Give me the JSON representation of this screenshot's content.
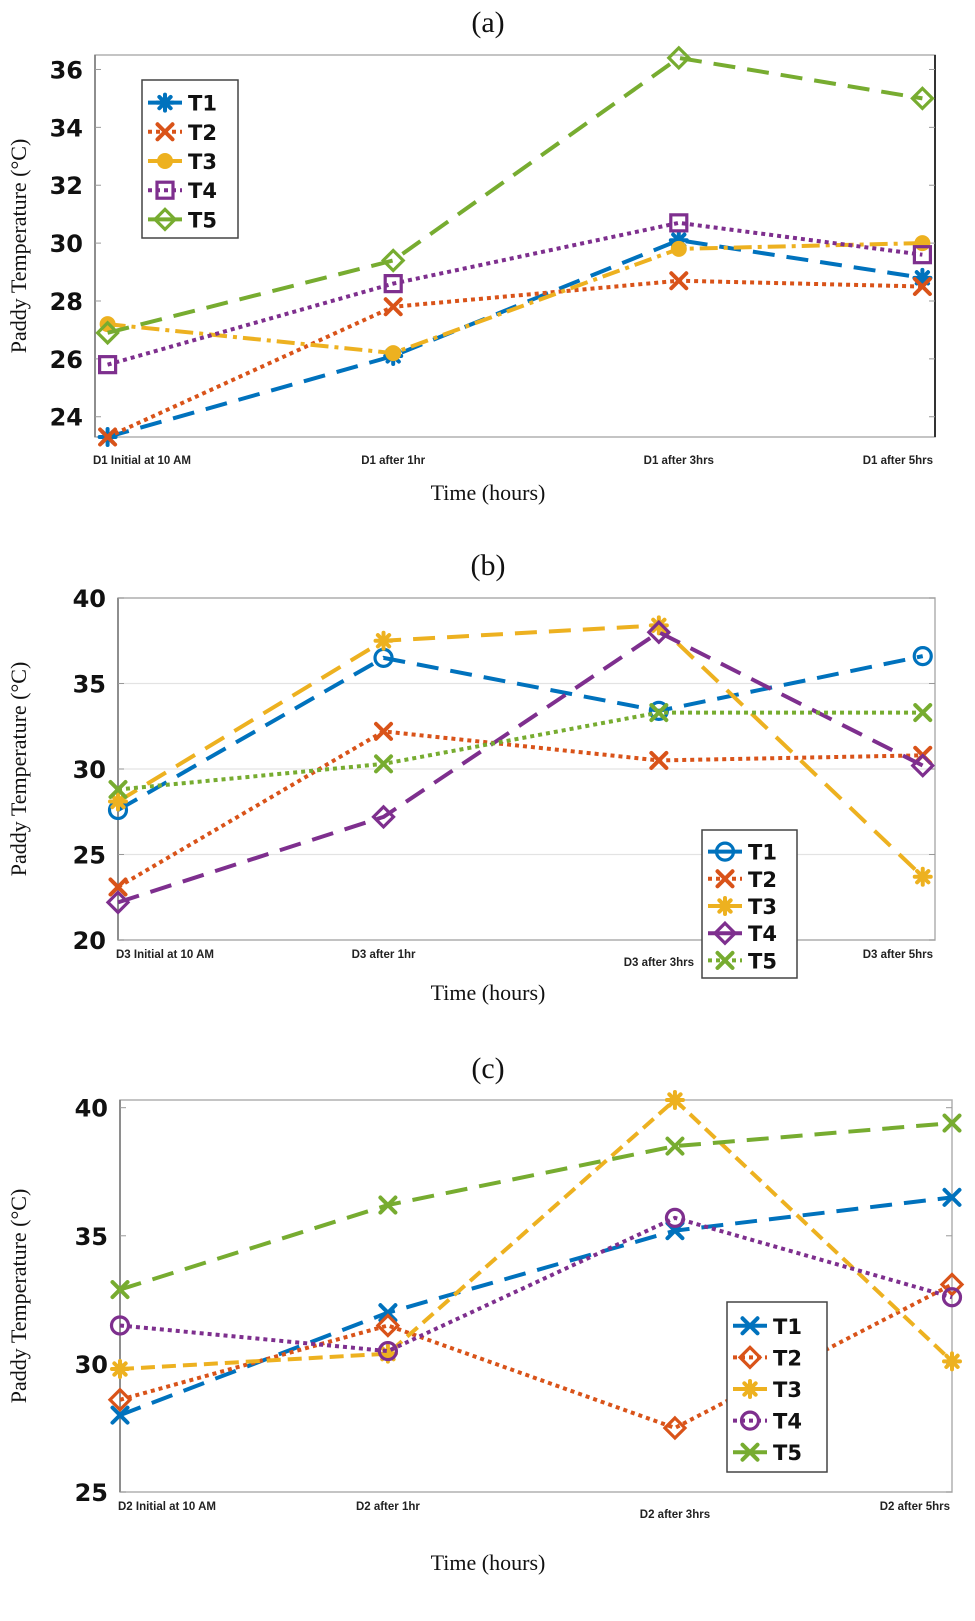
{
  "chart_data": [
    {
      "id": "a",
      "type": "line",
      "title": "(a)",
      "xlabel": "Time (hours)",
      "ylabel": "Paddy Temperature (°C)",
      "categories": [
        "D1 Initial at 10 AM",
        "D1 after 1hr",
        "D1 after 3hrs",
        "D1 after 5hrs"
      ],
      "ylim": [
        23.3,
        36.5
      ],
      "yticks": [
        24,
        26,
        28,
        30,
        32,
        34,
        36
      ],
      "grid": false,
      "legend_position": "top-left",
      "series": [
        {
          "name": "T1",
          "values": [
            23.3,
            26.1,
            30.1,
            28.8
          ],
          "color": "#0072BD",
          "marker": "asterisk",
          "dash": "long-dash"
        },
        {
          "name": "T2",
          "values": [
            23.3,
            27.8,
            28.7,
            28.5
          ],
          "color": "#D95319",
          "marker": "x",
          "dash": "dotted"
        },
        {
          "name": "T3",
          "values": [
            27.2,
            26.2,
            29.8,
            30.0
          ],
          "color": "#EDB120",
          "marker": "circle-filled",
          "dash": "dash-dot"
        },
        {
          "name": "T4",
          "values": [
            25.8,
            28.6,
            30.7,
            29.6
          ],
          "color": "#7E2F8E",
          "marker": "square",
          "dash": "dotted"
        },
        {
          "name": "T5",
          "values": [
            26.9,
            29.4,
            36.4,
            35.0
          ],
          "color": "#77AC30",
          "marker": "diamond",
          "dash": "long-dash"
        }
      ]
    },
    {
      "id": "b",
      "type": "line",
      "title": "(b)",
      "xlabel": "Time (hours)",
      "ylabel": "Paddy Temperature (°C)",
      "categories": [
        "D3 Initial at 10 AM",
        "D3 after 1hr",
        "D3 after 3hrs",
        "D3 after 5hrs"
      ],
      "ylim": [
        20,
        40
      ],
      "yticks": [
        20,
        25,
        30,
        35,
        40
      ],
      "grid": true,
      "legend_position": "bottom-right",
      "series": [
        {
          "name": "T1",
          "values": [
            27.6,
            36.5,
            33.4,
            36.6
          ],
          "color": "#0072BD",
          "marker": "circle",
          "dash": "long-dash"
        },
        {
          "name": "T2",
          "values": [
            23.1,
            32.2,
            30.5,
            30.8
          ],
          "color": "#D95319",
          "marker": "x",
          "dash": "dotted"
        },
        {
          "name": "T3",
          "values": [
            28.1,
            37.5,
            38.4,
            23.7
          ],
          "color": "#EDB120",
          "marker": "asterisk",
          "dash": "long-dash"
        },
        {
          "name": "T4",
          "values": [
            22.2,
            27.2,
            38.0,
            30.2
          ],
          "color": "#7E2F8E",
          "marker": "diamond",
          "dash": "long-dash"
        },
        {
          "name": "T5",
          "values": [
            28.8,
            30.3,
            33.3,
            33.3
          ],
          "color": "#77AC30",
          "marker": "x",
          "dash": "dotted"
        }
      ]
    },
    {
      "id": "c",
      "type": "line",
      "title": "(c)",
      "xlabel": "Time (hours)",
      "ylabel": "Paddy Temperature (°C)",
      "categories": [
        "D2 Initial at 10 AM",
        "D2 after 1hr",
        "D2 after 3hrs",
        "D2 after 5hrs"
      ],
      "ylim": [
        25,
        40.3
      ],
      "yticks": [
        25,
        30,
        35,
        40
      ],
      "grid": false,
      "legend_position": "bottom-right",
      "series": [
        {
          "name": "T1",
          "values": [
            28.0,
            32.0,
            35.2,
            36.5
          ],
          "color": "#0072BD",
          "marker": "x",
          "dash": "long-dash"
        },
        {
          "name": "T2",
          "values": [
            28.6,
            31.5,
            27.5,
            33.1
          ],
          "color": "#D95319",
          "marker": "diamond",
          "dash": "dotted"
        },
        {
          "name": "T3",
          "values": [
            29.8,
            30.4,
            40.3,
            30.1
          ],
          "color": "#EDB120",
          "marker": "asterisk",
          "dash": "dash"
        },
        {
          "name": "T4",
          "values": [
            31.5,
            30.5,
            35.7,
            32.6
          ],
          "color": "#7E2F8E",
          "marker": "circle",
          "dash": "dotted"
        },
        {
          "name": "T5",
          "values": [
            32.9,
            36.2,
            38.5,
            39.4
          ],
          "color": "#77AC30",
          "marker": "x",
          "dash": "long-dash"
        }
      ]
    }
  ]
}
